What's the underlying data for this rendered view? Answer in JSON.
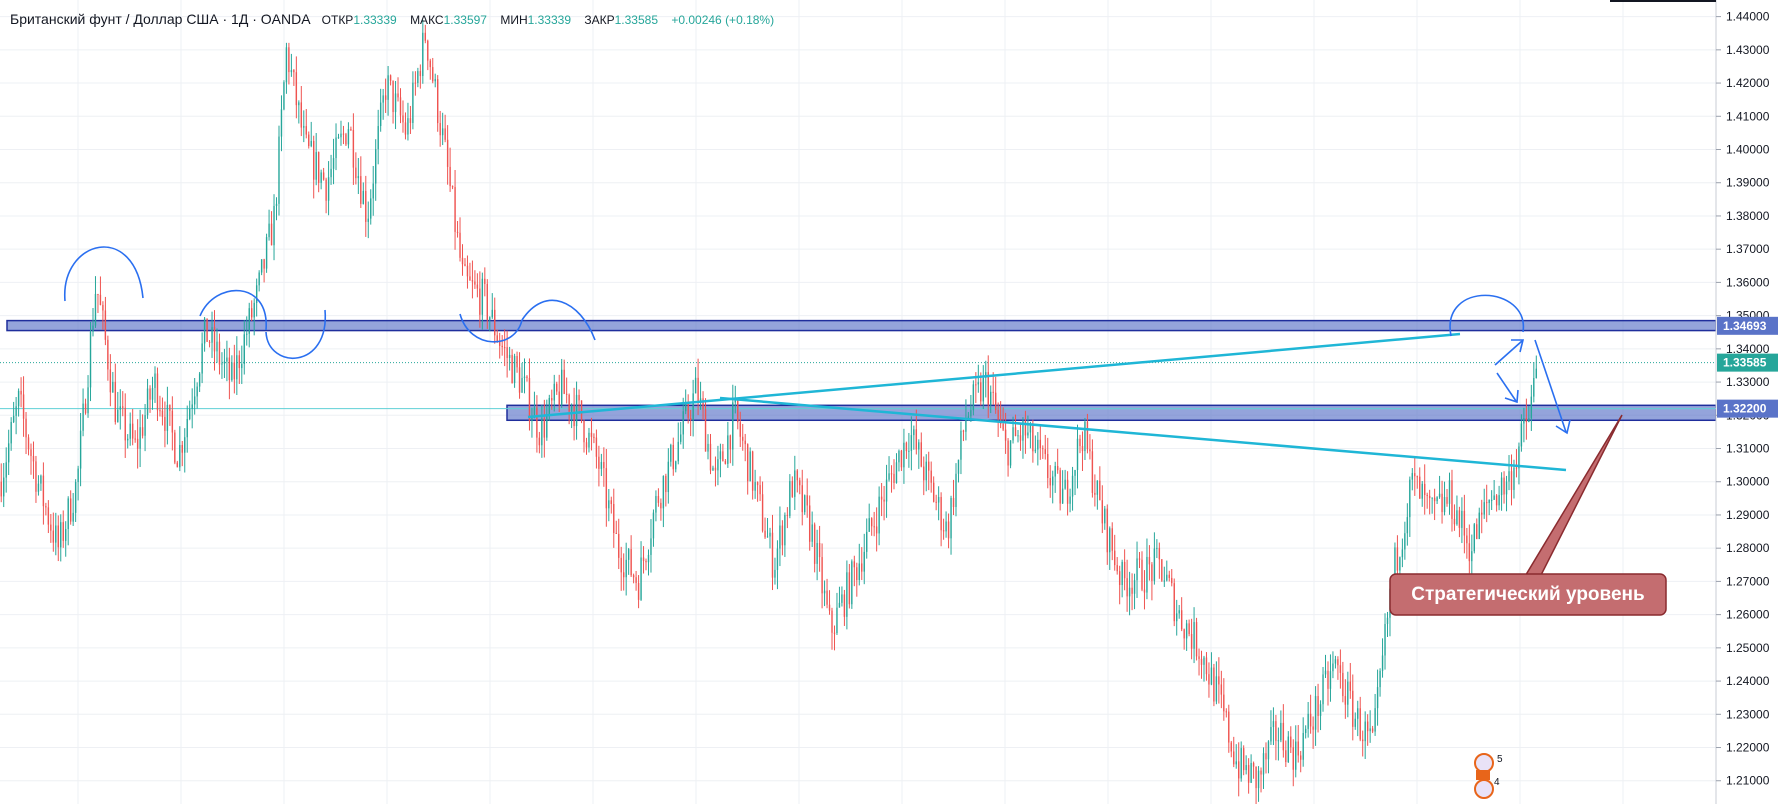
{
  "header": {
    "symbol": "Британский фунт / Доллар США · 1Д · OANDA",
    "open_label": "ОТКР",
    "open": "1.33339",
    "high_label": "МАКС",
    "high": "1.33597",
    "low_label": "МИН",
    "low": "1.33339",
    "close_label": "ЗАКР",
    "close": "1.33585",
    "change": "+0.00246 (+0.18%)"
  },
  "chart_data": {
    "type": "candlestick",
    "title": "Британский фунт / Доллар США · 1Д · OANDA",
    "y_ticks": [
      "1.21000",
      "1.22000",
      "1.23000",
      "1.24000",
      "1.25000",
      "1.26000",
      "1.27000",
      "1.28000",
      "1.29000",
      "1.30000",
      "1.31000",
      "1.32000",
      "1.33000",
      "1.34000",
      "1.35000",
      "1.36000",
      "1.37000",
      "1.38000",
      "1.39000",
      "1.40000",
      "1.41000",
      "1.42000",
      "1.43000",
      "1.44000"
    ],
    "ylim": [
      1.203,
      1.445
    ],
    "grid": true,
    "colors": {
      "up": "#26a69a",
      "down": "#ef5350",
      "trendline": "#1fb6d6",
      "zone": "#5a73c8",
      "zone_border": "#1f2e9c",
      "drawing": "#2a6ff0",
      "callout": "#c46d70"
    },
    "price_labels": [
      {
        "text": "1.34693",
        "value": 1.34693,
        "color": "#5a73c8"
      },
      {
        "text": "1.33585",
        "value": 1.33585,
        "color": "#26a69a"
      },
      {
        "text": "1.32200",
        "value": 1.322,
        "color": "#5a73c8"
      }
    ],
    "zones": [
      {
        "name": "resistance-zone",
        "low": 1.3455,
        "high": 1.3485
      },
      {
        "name": "strategic-zone",
        "low": 1.3185,
        "high": 1.323
      }
    ],
    "annotation": "Стратегический уровень",
    "event_badges": [
      "5",
      "4"
    ],
    "price_path": [
      {
        "t": 0.0,
        "p": 1.3
      },
      {
        "t": 0.011,
        "p": 1.324
      },
      {
        "t": 0.022,
        "p": 1.3
      },
      {
        "t": 0.034,
        "p": 1.28
      },
      {
        "t": 0.045,
        "p": 1.3
      },
      {
        "t": 0.056,
        "p": 1.36
      },
      {
        "t": 0.068,
        "p": 1.32
      },
      {
        "t": 0.079,
        "p": 1.31
      },
      {
        "t": 0.09,
        "p": 1.33
      },
      {
        "t": 0.104,
        "p": 1.308
      },
      {
        "t": 0.12,
        "p": 1.345
      },
      {
        "t": 0.135,
        "p": 1.33
      },
      {
        "t": 0.15,
        "p": 1.356
      },
      {
        "t": 0.16,
        "p": 1.38
      },
      {
        "t": 0.167,
        "p": 1.43
      },
      {
        "t": 0.178,
        "p": 1.4
      },
      {
        "t": 0.19,
        "p": 1.39
      },
      {
        "t": 0.203,
        "p": 1.408
      },
      {
        "t": 0.214,
        "p": 1.38
      },
      {
        "t": 0.225,
        "p": 1.42
      },
      {
        "t": 0.237,
        "p": 1.405
      },
      {
        "t": 0.248,
        "p": 1.435
      },
      {
        "t": 0.259,
        "p": 1.4
      },
      {
        "t": 0.27,
        "p": 1.36
      },
      {
        "t": 0.282,
        "p": 1.355
      },
      {
        "t": 0.293,
        "p": 1.34
      },
      {
        "t": 0.304,
        "p": 1.33
      },
      {
        "t": 0.315,
        "p": 1.315
      },
      {
        "t": 0.327,
        "p": 1.328
      },
      {
        "t": 0.338,
        "p": 1.32
      },
      {
        "t": 0.349,
        "p": 1.305
      },
      {
        "t": 0.36,
        "p": 1.28
      },
      {
        "t": 0.372,
        "p": 1.27
      },
      {
        "t": 0.383,
        "p": 1.295
      },
      {
        "t": 0.394,
        "p": 1.31
      },
      {
        "t": 0.406,
        "p": 1.328
      },
      {
        "t": 0.417,
        "p": 1.3
      },
      {
        "t": 0.428,
        "p": 1.32
      },
      {
        "t": 0.439,
        "p": 1.3
      },
      {
        "t": 0.451,
        "p": 1.275
      },
      {
        "t": 0.462,
        "p": 1.3
      },
      {
        "t": 0.473,
        "p": 1.285
      },
      {
        "t": 0.484,
        "p": 1.255
      },
      {
        "t": 0.496,
        "p": 1.27
      },
      {
        "t": 0.507,
        "p": 1.285
      },
      {
        "t": 0.518,
        "p": 1.3
      },
      {
        "t": 0.53,
        "p": 1.315
      },
      {
        "t": 0.541,
        "p": 1.3
      },
      {
        "t": 0.552,
        "p": 1.285
      },
      {
        "t": 0.563,
        "p": 1.32
      },
      {
        "t": 0.575,
        "p": 1.33
      },
      {
        "t": 0.586,
        "p": 1.31
      },
      {
        "t": 0.597,
        "p": 1.315
      },
      {
        "t": 0.608,
        "p": 1.305
      },
      {
        "t": 0.62,
        "p": 1.295
      },
      {
        "t": 0.631,
        "p": 1.315
      },
      {
        "t": 0.642,
        "p": 1.29
      },
      {
        "t": 0.654,
        "p": 1.27
      },
      {
        "t": 0.665,
        "p": 1.272
      },
      {
        "t": 0.676,
        "p": 1.275
      },
      {
        "t": 0.687,
        "p": 1.26
      },
      {
        "t": 0.699,
        "p": 1.25
      },
      {
        "t": 0.71,
        "p": 1.235
      },
      {
        "t": 0.721,
        "p": 1.215
      },
      {
        "t": 0.733,
        "p": 1.21
      },
      {
        "t": 0.744,
        "p": 1.225
      },
      {
        "t": 0.755,
        "p": 1.218
      },
      {
        "t": 0.766,
        "p": 1.23
      },
      {
        "t": 0.778,
        "p": 1.245
      },
      {
        "t": 0.789,
        "p": 1.23
      },
      {
        "t": 0.8,
        "p": 1.22
      },
      {
        "t": 0.811,
        "p": 1.27
      },
      {
        "t": 0.823,
        "p": 1.3
      },
      {
        "t": 0.834,
        "p": 1.29
      },
      {
        "t": 0.845,
        "p": 1.295
      },
      {
        "t": 0.857,
        "p": 1.28
      },
      {
        "t": 0.868,
        "p": 1.295
      },
      {
        "t": 0.879,
        "p": 1.3
      },
      {
        "t": 0.891,
        "p": 1.32
      },
      {
        "t": 0.896,
        "p": 1.335
      }
    ]
  }
}
